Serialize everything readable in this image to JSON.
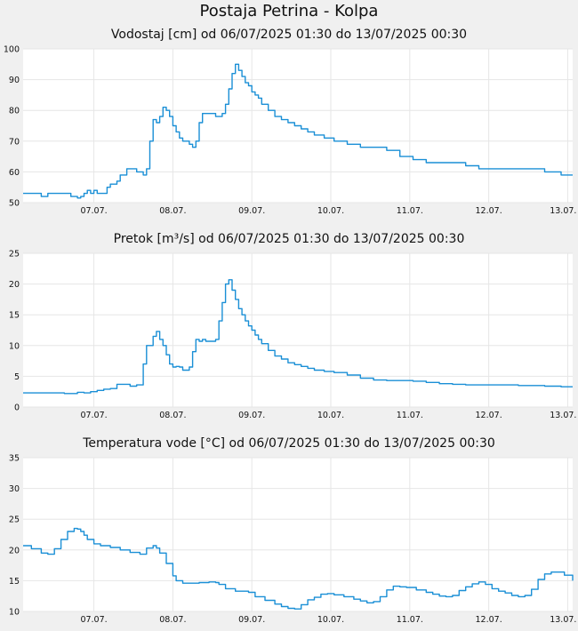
{
  "page_title": "Postaja Petrina - Kolpa",
  "colors": {
    "line": "#1a8fd6",
    "plot_bg": "#ffffff",
    "grid": "#e6e6e6",
    "page_bg": "#f0f0f0"
  },
  "chart_data": [
    {
      "type": "line",
      "title": "Vodostaj [cm] od 06/07/2025 01:30 do 13/07/2025 00:30",
      "ylim": [
        50,
        100
      ],
      "yticks": [
        50,
        60,
        70,
        80,
        90,
        100
      ],
      "xlim": [
        1.5,
        168.5
      ],
      "xtick_positions": [
        23,
        47,
        71,
        95,
        119,
        143,
        167
      ],
      "xtick_labels": [
        "07.07.",
        "08.07.",
        "09.07.",
        "10.07.",
        "11.07.",
        "12.07.",
        "13.07."
      ],
      "grid": true,
      "series": [
        {
          "x": [
            1.5,
            6,
            7,
            9,
            16,
            17,
            18,
            19,
            20,
            21,
            22,
            23,
            24,
            25,
            27,
            28,
            29,
            30,
            31,
            33,
            34,
            35,
            36,
            38,
            39,
            40,
            41,
            42,
            43,
            44,
            45,
            46,
            47,
            48,
            49,
            50,
            51,
            52,
            53,
            54,
            55,
            56,
            57,
            59,
            60,
            61,
            62,
            63,
            64,
            65,
            66,
            67,
            68,
            69,
            70,
            71,
            72,
            73,
            74,
            76,
            78,
            80,
            82,
            84,
            86,
            88,
            90,
            93,
            96,
            100,
            104,
            108,
            112,
            116,
            120,
            124,
            128,
            132,
            136,
            140,
            144,
            148,
            152,
            156,
            160,
            163,
            165,
            168.5
          ],
          "y": [
            53,
            53,
            52,
            53,
            52,
            52,
            51.5,
            52,
            53,
            54,
            53,
            54,
            53,
            53,
            55,
            56,
            56,
            57,
            59,
            61,
            61,
            61,
            60,
            59,
            61,
            70,
            77,
            76,
            78,
            81,
            80,
            78,
            75,
            73,
            71,
            70,
            70,
            69,
            68,
            70,
            76,
            79,
            79,
            79,
            78,
            78,
            79,
            82,
            87,
            92,
            95,
            93,
            91,
            89,
            88,
            86,
            85,
            84,
            82,
            80,
            78,
            77,
            76,
            75,
            74,
            73,
            72,
            71,
            70,
            69,
            68,
            68,
            67,
            65,
            64,
            63,
            63,
            63,
            62,
            61,
            61,
            61,
            61,
            61,
            60,
            60,
            59,
            59
          ]
        }
      ]
    },
    {
      "type": "line",
      "title": "Pretok [m³/s] od 06/07/2025 01:30 do 13/07/2025 00:30",
      "ylim": [
        0,
        25
      ],
      "yticks": [
        0,
        5,
        10,
        15,
        20,
        25
      ],
      "xlim": [
        1.5,
        168.5
      ],
      "xtick_positions": [
        23,
        47,
        71,
        95,
        119,
        143,
        167
      ],
      "xtick_labels": [
        "07.07.",
        "08.07.",
        "09.07.",
        "10.07.",
        "11.07.",
        "12.07.",
        "13.07."
      ],
      "grid": true,
      "series": [
        {
          "x": [
            1.5,
            8,
            14,
            16,
            18,
            20,
            22,
            24,
            26,
            28,
            30,
            32,
            34,
            35,
            36,
            38,
            39,
            40,
            41,
            42,
            43,
            44,
            45,
            46,
            47,
            48,
            49,
            50,
            51,
            52,
            53,
            54,
            55,
            56,
            57,
            59,
            60,
            61,
            62,
            63,
            64,
            65,
            66,
            67,
            68,
            69,
            70,
            71,
            72,
            73,
            74,
            76,
            78,
            80,
            82,
            84,
            86,
            88,
            90,
            93,
            96,
            100,
            104,
            108,
            112,
            116,
            120,
            124,
            128,
            132,
            136,
            140,
            144,
            148,
            152,
            156,
            160,
            163,
            165,
            168.5
          ],
          "y": [
            2.3,
            2.3,
            2.2,
            2.2,
            2.4,
            2.3,
            2.5,
            2.7,
            2.9,
            3.0,
            3.7,
            3.7,
            3.4,
            3.4,
            3.6,
            7,
            10,
            10,
            11.5,
            12.3,
            11,
            10,
            8.5,
            7,
            6.5,
            6.6,
            6.5,
            6.0,
            6.0,
            6.5,
            9,
            11,
            10.7,
            11.0,
            10.7,
            10.7,
            11,
            14,
            17,
            20,
            20.7,
            19,
            17.5,
            16,
            15,
            14,
            13.2,
            12.5,
            11.7,
            11,
            10.3,
            9.2,
            8.3,
            7.8,
            7.2,
            6.9,
            6.6,
            6.3,
            6.0,
            5.8,
            5.6,
            5.2,
            4.7,
            4.4,
            4.3,
            4.3,
            4.2,
            4.0,
            3.8,
            3.7,
            3.6,
            3.6,
            3.6,
            3.6,
            3.5,
            3.5,
            3.4,
            3.4,
            3.3,
            3.3
          ]
        }
      ]
    },
    {
      "type": "line",
      "title": "Temperatura vode [°C] od 06/07/2025 01:30 do 13/07/2025 00:30",
      "ylim": [
        10,
        35
      ],
      "yticks": [
        10,
        15,
        20,
        25,
        30,
        35
      ],
      "xlim": [
        1.5,
        168.5
      ],
      "xtick_positions": [
        23,
        47,
        71,
        95,
        119,
        143,
        167
      ],
      "xtick_labels": [
        "07.07.",
        "08.07.",
        "09.07.",
        "10.07.",
        "11.07.",
        "12.07.",
        "13.07."
      ],
      "grid": true,
      "series": [
        {
          "x": [
            1.5,
            4,
            7,
            9,
            11,
            13,
            15,
            17,
            18,
            19,
            20,
            21,
            23,
            25,
            28,
            31,
            34,
            37,
            39,
            41,
            42,
            43,
            45,
            47,
            48,
            50,
            52,
            55,
            58,
            60,
            61,
            63,
            66,
            70,
            72,
            75,
            78,
            80,
            82,
            84,
            86,
            88,
            90,
            92,
            94,
            96,
            99,
            102,
            104,
            106,
            108,
            110,
            112,
            114,
            116,
            118,
            121,
            124,
            126,
            128,
            130,
            132,
            134,
            136,
            138,
            140,
            142,
            144,
            146,
            148,
            150,
            152,
            154,
            156,
            158,
            160,
            162,
            164,
            166,
            168.5
          ],
          "y": [
            20.7,
            20.2,
            19.5,
            19.3,
            20.2,
            21.7,
            23,
            23.5,
            23.4,
            23,
            22.4,
            21.7,
            21,
            20.7,
            20.4,
            20,
            19.6,
            19.3,
            20.3,
            20.7,
            20.3,
            19.5,
            17.8,
            15.8,
            15,
            14.6,
            14.6,
            14.7,
            14.8,
            14.7,
            14.4,
            13.7,
            13.3,
            13.1,
            12.4,
            11.8,
            11.2,
            10.8,
            10.5,
            10.4,
            11.1,
            11.9,
            12.3,
            12.8,
            12.9,
            12.7,
            12.4,
            12.0,
            11.7,
            11.4,
            11.6,
            12.4,
            13.5,
            14.1,
            14.0,
            13.9,
            13.5,
            13.1,
            12.8,
            12.5,
            12.4,
            12.6,
            13.4,
            14.0,
            14.5,
            14.8,
            14.4,
            13.7,
            13.3,
            13.0,
            12.6,
            12.4,
            12.6,
            13.6,
            15.2,
            16.1,
            16.4,
            16.4,
            15.9,
            15.0
          ]
        }
      ]
    }
  ]
}
